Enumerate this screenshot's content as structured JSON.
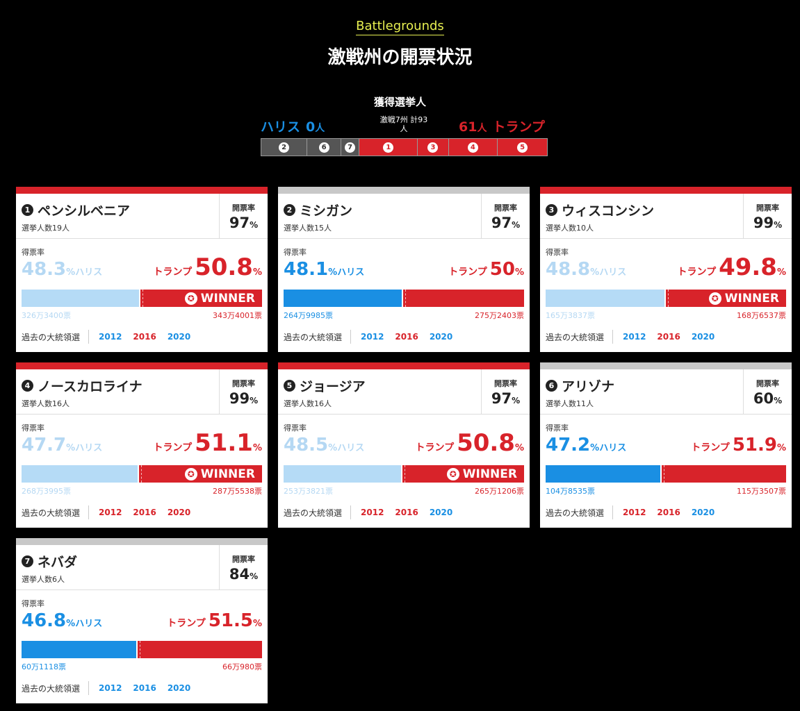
{
  "header": {
    "kicker": "Battlegrounds",
    "title": "激戦州の開票状況"
  },
  "electoral": {
    "label": "獲得選挙人",
    "harris_name": "ハリス",
    "harris_count": "0",
    "unit": "人",
    "trump_count": "61",
    "trump_name": "トランプ",
    "total_line1": "激戦7州 計93",
    "total_line2": "人",
    "segments": [
      {
        "num": "2",
        "status": "undecided",
        "ev": 15
      },
      {
        "num": "6",
        "status": "undecided",
        "ev": 11
      },
      {
        "num": "7",
        "status": "undecided",
        "ev": 6
      },
      {
        "num": "1",
        "status": "trump",
        "ev": 19
      },
      {
        "num": "3",
        "status": "trump",
        "ev": 10
      },
      {
        "num": "4",
        "status": "trump",
        "ev": 16
      },
      {
        "num": "5",
        "status": "trump",
        "ev": 16
      }
    ]
  },
  "labels": {
    "reporting": "開票率",
    "vote_share": "得票率",
    "past": "過去の大統領選",
    "harris": "ハリス",
    "trump": "トランプ",
    "pct": "%",
    "winner": "WINNER",
    "star": "✪"
  },
  "colors": {
    "harris": "#1a8fe3",
    "harris_light": "#b5dbf6",
    "trump": "#d8232a",
    "undecided": "#555555"
  },
  "cards": [
    {
      "num": "1",
      "state": "ペンシルベニア",
      "ev": "選挙人数19人",
      "reporting": "97",
      "harris_pct": "48.3",
      "trump_pct": "50.8",
      "harris_votes": "326万3400票",
      "trump_votes": "343万4001票",
      "winner": true,
      "topbar": "red",
      "years": [
        {
          "y": "2012",
          "p": "d"
        },
        {
          "y": "2016",
          "p": "r"
        },
        {
          "y": "2020",
          "p": "d"
        }
      ]
    },
    {
      "num": "2",
      "state": "ミシガン",
      "ev": "選挙人数15人",
      "reporting": "97",
      "harris_pct": "48.1",
      "trump_pct": "50",
      "harris_votes": "264万9985票",
      "trump_votes": "275万2403票",
      "winner": false,
      "topbar": "gray",
      "years": [
        {
          "y": "2012",
          "p": "d"
        },
        {
          "y": "2016",
          "p": "r"
        },
        {
          "y": "2020",
          "p": "d"
        }
      ]
    },
    {
      "num": "3",
      "state": "ウィスコンシン",
      "ev": "選挙人数10人",
      "reporting": "99",
      "harris_pct": "48.8",
      "trump_pct": "49.8",
      "harris_votes": "165万3837票",
      "trump_votes": "168万6537票",
      "winner": true,
      "topbar": "red",
      "years": [
        {
          "y": "2012",
          "p": "d"
        },
        {
          "y": "2016",
          "p": "r"
        },
        {
          "y": "2020",
          "p": "d"
        }
      ]
    },
    {
      "num": "4",
      "state": "ノースカロライナ",
      "ev": "選挙人数16人",
      "reporting": "99",
      "harris_pct": "47.7",
      "trump_pct": "51.1",
      "harris_votes": "268万3995票",
      "trump_votes": "287万5538票",
      "winner": true,
      "topbar": "red",
      "years": [
        {
          "y": "2012",
          "p": "r"
        },
        {
          "y": "2016",
          "p": "r"
        },
        {
          "y": "2020",
          "p": "r"
        }
      ]
    },
    {
      "num": "5",
      "state": "ジョージア",
      "ev": "選挙人数16人",
      "reporting": "97",
      "harris_pct": "48.5",
      "trump_pct": "50.8",
      "harris_votes": "253万3821票",
      "trump_votes": "265万1206票",
      "winner": true,
      "topbar": "red",
      "years": [
        {
          "y": "2012",
          "p": "r"
        },
        {
          "y": "2016",
          "p": "r"
        },
        {
          "y": "2020",
          "p": "d"
        }
      ]
    },
    {
      "num": "6",
      "state": "アリゾナ",
      "ev": "選挙人数11人",
      "reporting": "60",
      "harris_pct": "47.2",
      "trump_pct": "51.9",
      "harris_votes": "104万8535票",
      "trump_votes": "115万3507票",
      "winner": false,
      "topbar": "gray",
      "years": [
        {
          "y": "2012",
          "p": "r"
        },
        {
          "y": "2016",
          "p": "r"
        },
        {
          "y": "2020",
          "p": "d"
        }
      ]
    },
    {
      "num": "7",
      "state": "ネバダ",
      "ev": "選挙人数6人",
      "reporting": "84",
      "harris_pct": "46.8",
      "trump_pct": "51.5",
      "harris_votes": "60万1118票",
      "trump_votes": "66万980票",
      "winner": false,
      "topbar": "gray",
      "years": [
        {
          "y": "2012",
          "p": "d"
        },
        {
          "y": "2016",
          "p": "d"
        },
        {
          "y": "2020",
          "p": "d"
        }
      ]
    }
  ]
}
